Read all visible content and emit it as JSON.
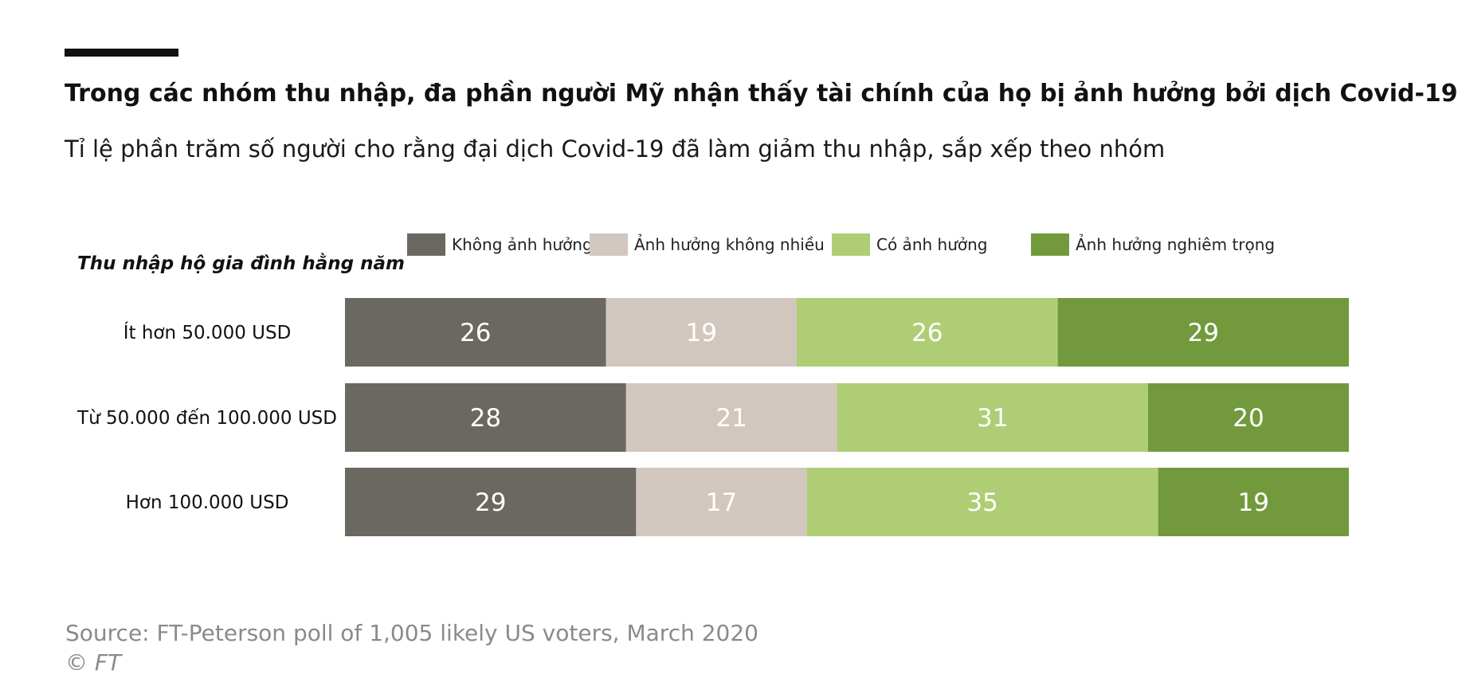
{
  "header": {
    "title": "Trong các nhóm thu nhập, đa phần người Mỹ nhận thấy tài chính của họ bị ảnh hưởng bởi dịch Covid-19",
    "subtitle": "Tỉ lệ phần trăm số người cho rằng đại dịch Covid-19 đã làm giảm thu nhập, sắp xếp theo nhóm"
  },
  "footer": {
    "source": "Source: FT-Peterson poll of 1,005 likely US voters, March 2020",
    "copyright": "© FT"
  },
  "chart_data": {
    "type": "bar",
    "orientation": "horizontal",
    "stacked": true,
    "row_header": "Thu nhập hộ gia đình hằng năm",
    "categories": [
      "Ít hơn 50.000 USD",
      "Từ 50.000 đến 100.000 USD",
      "Hơn 100.000 USD"
    ],
    "series": [
      {
        "name": "Không ảnh hưởng",
        "color": "#6b6761",
        "values": [
          26,
          28,
          29
        ]
      },
      {
        "name": "Ảnh hưởng không nhiều",
        "color": "#d2c7be",
        "values": [
          19,
          21,
          17
        ]
      },
      {
        "name": "Có ảnh hưởng",
        "color": "#aecd75",
        "values": [
          26,
          31,
          35
        ]
      },
      {
        "name": "Ảnh hưởng nghiêm trọng",
        "color": "#729a3d",
        "values": [
          29,
          20,
          19
        ]
      }
    ],
    "xlim": [
      0,
      100
    ],
    "grid": false,
    "legend_position": "top"
  }
}
